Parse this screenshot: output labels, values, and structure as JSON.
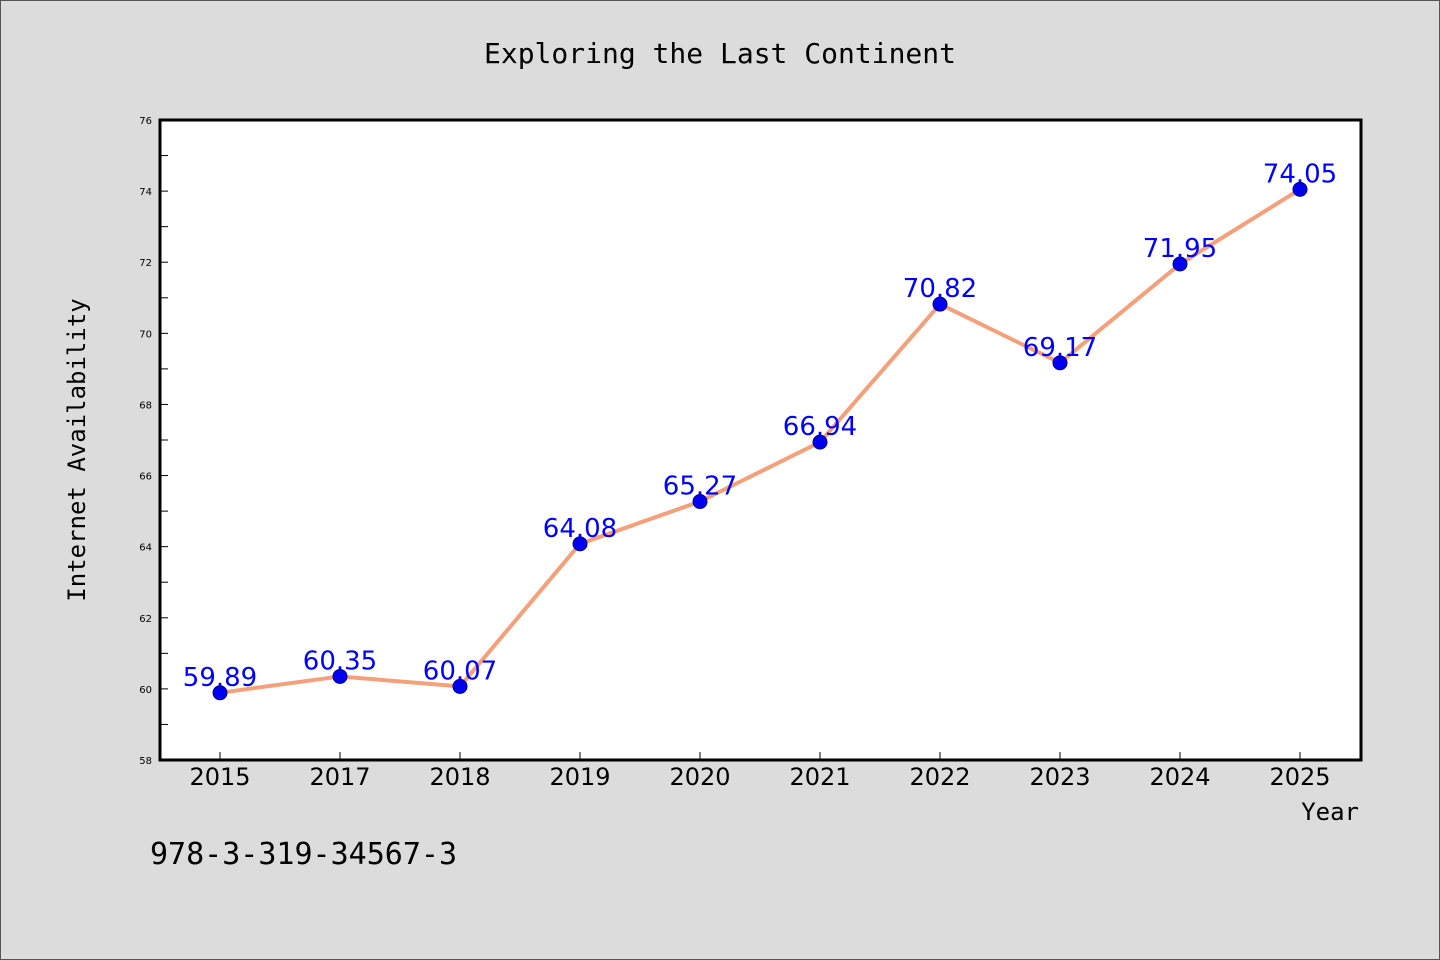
{
  "chart_data": {
    "type": "line",
    "title": "Exploring the Last Continent",
    "xlabel": "Year",
    "ylabel": "Internet Availability",
    "categories": [
      "2015",
      "2017",
      "2018",
      "2019",
      "2020",
      "2021",
      "2022",
      "2023",
      "2024",
      "2025"
    ],
    "series": [
      {
        "values": [
          59.89,
          60.35,
          60.07,
          64.08,
          65.27,
          66.94,
          70.82,
          69.17,
          71.95,
          74.05
        ],
        "data_labels": [
          "59.89",
          "60.35",
          "60.07",
          "64.08",
          "65.27",
          "66.94",
          "70.82",
          "69.17",
          "71.95",
          "74.05"
        ],
        "line_color": "#f4a07a",
        "marker_color": "#0000ee"
      }
    ],
    "ylim": [
      58,
      76
    ],
    "yticks": [
      "58",
      "60",
      "62",
      "64",
      "66",
      "68",
      "70",
      "72",
      "74",
      "76"
    ],
    "grid": false,
    "legend": "none"
  },
  "footer": {
    "isbn": "978-3-319-34567-3"
  },
  "colors": {
    "background": "#dcdcdc",
    "plot_background": "#ffffff",
    "line": "#f4a07a",
    "marker": "#0000ee",
    "data_label": "#0000ff"
  }
}
